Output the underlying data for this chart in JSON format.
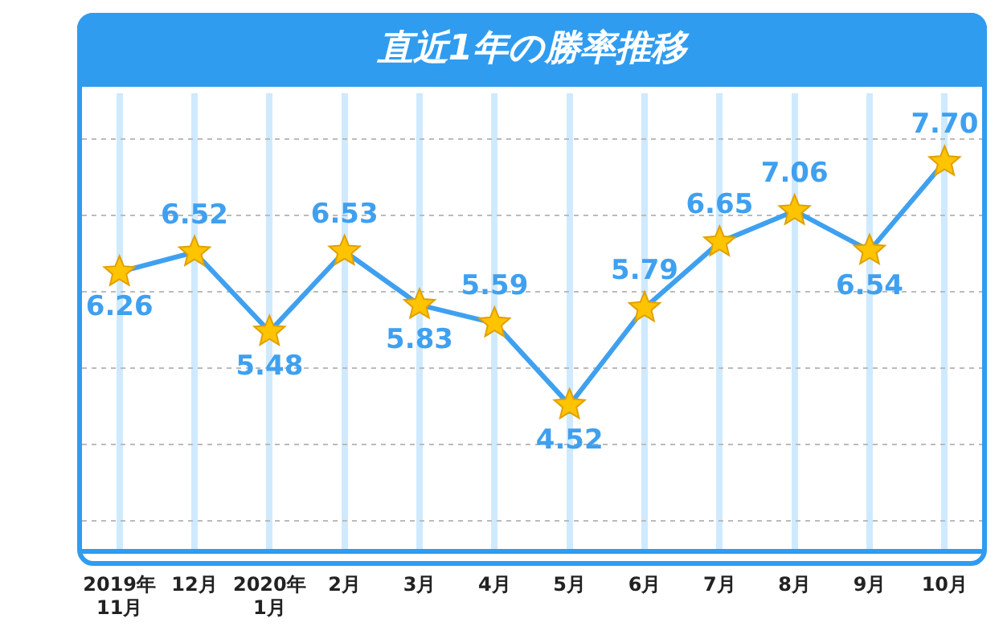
{
  "chart_data": {
    "type": "line",
    "title": "直近1年の勝率推移",
    "categories": [
      "2019年\n11月",
      "12月",
      "2020年\n1月",
      "2月",
      "3月",
      "4月",
      "5月",
      "6月",
      "7月",
      "8月",
      "9月",
      "10月"
    ],
    "series": [
      {
        "color": "#3fa0f0",
        "values": [
          6.26,
          6.52,
          5.48,
          6.53,
          5.83,
          5.59,
          4.52,
          5.79,
          6.65,
          7.06,
          6.54,
          7.7
        ],
        "value_labels": [
          "6.26",
          "6.52",
          "5.48",
          "6.53",
          "5.83",
          "5.59",
          "4.52",
          "5.79",
          "6.65",
          "7.06",
          "6.54",
          "7.70"
        ]
      }
    ],
    "ylim": [
      2.6,
      8.6
    ],
    "yticks": [
      {
        "value": 3,
        "label": null
      },
      {
        "value": 4,
        "label": null
      },
      {
        "value": 5,
        "label": null
      },
      {
        "value": 6,
        "label": null
      },
      {
        "value": 7,
        "label": null
      },
      {
        "value": 8,
        "label": null
      }
    ],
    "grid": true,
    "marker": "star",
    "line_style": "solid",
    "legend": false
  }
}
